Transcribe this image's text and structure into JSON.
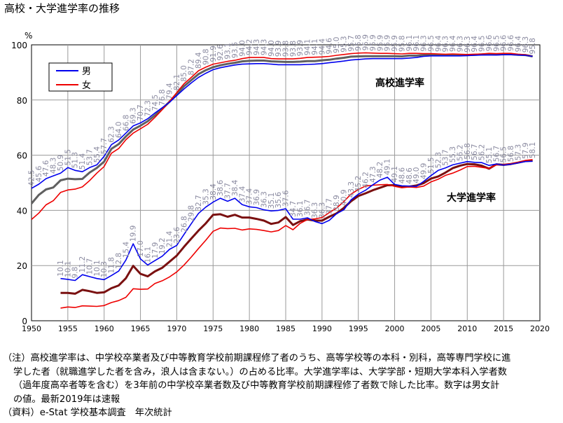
{
  "title": "高校・大学進学率の推移",
  "colors": {
    "male": "#0000ee",
    "female": "#ee0000",
    "total_hs": "#606060",
    "total_univ": "#7a1010",
    "label": "#8a8aa0"
  },
  "chart_data": {
    "type": "line",
    "ylabel": "%",
    "xlim": [
      1950,
      2020
    ],
    "ylim": [
      0,
      100
    ],
    "xticks": [
      1950,
      1955,
      1960,
      1965,
      1970,
      1975,
      1980,
      1985,
      1990,
      1995,
      2000,
      2005,
      2010,
      2015,
      2020
    ],
    "yticks": [
      0,
      20,
      40,
      60,
      80,
      100
    ],
    "legend": {
      "placement": "top-left",
      "entries": [
        "男",
        "女"
      ]
    },
    "annotations": [
      "高校進学率",
      "大学進学率"
    ],
    "series_hs": {
      "name": "高校進学率",
      "x": [
        1950,
        1951,
        1952,
        1953,
        1954,
        1955,
        1956,
        1957,
        1958,
        1959,
        1960,
        1961,
        1962,
        1963,
        1964,
        1965,
        1966,
        1967,
        1968,
        1969,
        1970,
        1971,
        1972,
        1973,
        1974,
        1975,
        1976,
        1977,
        1978,
        1979,
        1980,
        1981,
        1982,
        1983,
        1984,
        1985,
        1986,
        1987,
        1988,
        1989,
        1990,
        1991,
        1992,
        1993,
        1994,
        1995,
        1996,
        1997,
        1998,
        1999,
        2000,
        2001,
        2002,
        2003,
        2004,
        2005,
        2006,
        2007,
        2008,
        2009,
        2010,
        2011,
        2012,
        2013,
        2014,
        2015,
        2016,
        2017,
        2018,
        2019
      ],
      "total": [
        42.5,
        45.6,
        47.6,
        48.3,
        50.9,
        51.5,
        51.3,
        51.4,
        53.7,
        55.4,
        57.7,
        62.3,
        64.0,
        66.8,
        69.3,
        70.7,
        72.3,
        74.5,
        76.8,
        79.4,
        82.1,
        85.0,
        87.2,
        89.4,
        90.8,
        91.9,
        92.6,
        93.1,
        93.5,
        94.0,
        94.2,
        94.3,
        94.3,
        94.0,
        93.9,
        93.8,
        93.8,
        93.9,
        94.1,
        94.1,
        94.4,
        94.6,
        95.0,
        95.3,
        95.7,
        95.8,
        95.9,
        95.9,
        95.9,
        95.9,
        95.9,
        95.8,
        96.1,
        96.1,
        96.3,
        96.5,
        96.4,
        96.3,
        96.4,
        96.3,
        96.3,
        96.4,
        96.5,
        96.6,
        96.5,
        96.6,
        96.6,
        96.4,
        96.3,
        95.8
      ],
      "male": [
        48.0,
        49.5,
        51.5,
        52.5,
        53.5,
        55.5,
        54.5,
        54.0,
        55.5,
        56.5,
        59.6,
        63.8,
        65.5,
        68.0,
        70.6,
        71.7,
        73.2,
        75.3,
        77.2,
        79.2,
        81.6,
        84.0,
        86.2,
        88.2,
        89.7,
        91.0,
        91.7,
        92.2,
        92.7,
        93.0,
        93.1,
        93.2,
        93.2,
        93.0,
        92.8,
        92.8,
        92.8,
        92.8,
        92.9,
        93.0,
        93.2,
        93.5,
        93.8,
        94.1,
        94.5,
        94.7,
        94.9,
        95.0,
        95.0,
        95.0,
        95.0,
        95.0,
        95.2,
        95.4,
        95.8,
        96.0,
        96.0,
        96.0,
        96.0,
        96.0,
        96.1,
        96.2,
        96.3,
        96.3,
        96.3,
        96.4,
        96.4,
        96.3,
        96.2,
        95.8
      ],
      "female": [
        36.7,
        39.0,
        42.0,
        43.5,
        46.5,
        47.4,
        47.7,
        48.5,
        50.8,
        53.5,
        55.9,
        60.7,
        62.4,
        65.6,
        68.0,
        69.6,
        71.2,
        73.7,
        76.5,
        79.5,
        82.7,
        85.9,
        88.2,
        90.6,
        91.9,
        93.0,
        93.5,
        94.0,
        94.4,
        95.0,
        95.4,
        95.4,
        95.4,
        95.0,
        94.9,
        94.9,
        94.9,
        95.1,
        95.4,
        95.5,
        95.6,
        95.8,
        96.2,
        96.5,
        96.8,
        97.0,
        97.1,
        97.0,
        96.9,
        96.9,
        96.8,
        96.7,
        96.9,
        96.9,
        96.8,
        96.8,
        96.7,
        96.6,
        96.7,
        96.6,
        96.5,
        96.6,
        96.7,
        96.9,
        96.8,
        96.9,
        96.9,
        96.6,
        96.4,
        95.8
      ]
    },
    "series_univ": {
      "name": "大学進学率",
      "x": [
        1954,
        1955,
        1956,
        1957,
        1958,
        1959,
        1960,
        1961,
        1962,
        1963,
        1964,
        1965,
        1966,
        1967,
        1968,
        1969,
        1970,
        1971,
        1972,
        1973,
        1974,
        1975,
        1976,
        1977,
        1978,
        1979,
        1980,
        1981,
        1982,
        1983,
        1984,
        1985,
        1986,
        1987,
        1988,
        1989,
        1990,
        1991,
        1992,
        1993,
        1994,
        1995,
        1996,
        1997,
        1998,
        1999,
        2000,
        2001,
        2002,
        2003,
        2004,
        2005,
        2006,
        2007,
        2008,
        2009,
        2010,
        2011,
        2012,
        2013,
        2014,
        2015,
        2016,
        2017,
        2018,
        2019
      ],
      "total": [
        10.1,
        10.1,
        9.8,
        11.2,
        10.7,
        10.1,
        10.3,
        11.8,
        12.8,
        15.4,
        19.9,
        17.0,
        16.1,
        17.9,
        19.2,
        21.4,
        23.6,
        26.8,
        29.8,
        32.7,
        35.3,
        38.4,
        38.6,
        37.7,
        38.4,
        37.4,
        37.4,
        36.9,
        36.3,
        35.1,
        35.6,
        37.6,
        34.7,
        36.1,
        36.7,
        36.3,
        36.3,
        37.7,
        38.9,
        40.9,
        43.3,
        45.2,
        46.2,
        47.3,
        48.2,
        49.1,
        49.1,
        48.6,
        48.6,
        49.0,
        49.9,
        51.5,
        52.3,
        53.7,
        55.3,
        56.2,
        56.8,
        56.7,
        56.2,
        55.1,
        56.7,
        56.5,
        56.8,
        57.3,
        57.9,
        58.1
      ],
      "male": [
        15.3,
        15.0,
        14.6,
        16.7,
        16.0,
        15.3,
        14.9,
        16.4,
        18.0,
        22.0,
        27.9,
        22.4,
        20.2,
        21.8,
        23.4,
        25.9,
        27.3,
        31.3,
        35.2,
        38.9,
        41.2,
        43.0,
        44.4,
        43.3,
        44.4,
        42.1,
        41.3,
        41.0,
        40.2,
        39.8,
        40.0,
        40.6,
        36.8,
        36.8,
        37.3,
        36.0,
        35.2,
        36.4,
        38.8,
        40.2,
        43.8,
        45.9,
        47.3,
        49.3,
        51.0,
        52.0,
        49.4,
        48.9,
        48.8,
        48.7,
        50.5,
        52.6,
        54.5,
        55.4,
        56.5,
        57.1,
        57.7,
        57.4,
        57.3,
        56.3,
        56.8,
        56.4,
        56.7,
        57.2,
        57.7,
        57.8
      ],
      "female": [
        4.6,
        5.0,
        4.8,
        5.4,
        5.3,
        5.2,
        5.5,
        6.6,
        7.3,
        8.5,
        11.6,
        11.4,
        11.5,
        13.5,
        14.5,
        15.9,
        17.7,
        20.2,
        23.1,
        26.2,
        29.2,
        32.4,
        33.6,
        33.4,
        33.5,
        32.9,
        33.3,
        33.1,
        32.7,
        32.2,
        32.7,
        34.5,
        33.0,
        35.3,
        36.7,
        36.9,
        37.4,
        39.2,
        40.8,
        43.2,
        45.9,
        47.6,
        48.8,
        49.1,
        49.3,
        49.4,
        48.7,
        48.2,
        48.5,
        48.3,
        48.8,
        50.3,
        51.3,
        52.7,
        53.5,
        54.6,
        55.9,
        56.0,
        55.6,
        55.2,
        56.5,
        56.6,
        56.9,
        57.4,
        58.1,
        58.4
      ]
    }
  },
  "notes": {
    "line1": "（注）高校進学率は、中学校卒業者及び中等教育学校前期課程修了者のうち、高等学校等の本科・別科，高等専門学校に進",
    "line2": "学した者（就職進学した者を含み，浪人は含まない。）の占める比率。大学進学率は、大学学部・短期大学本科入学者数",
    "line3": "（過年度高卒者等を含む）を3年前の中学校卒業者数及び中等教育学校前期課程修了者数で除した比率。数字は男女計",
    "line4": "の値。最新2019年は速報",
    "source": "（資料）e-Stat 学校基本調査　年次統計"
  }
}
